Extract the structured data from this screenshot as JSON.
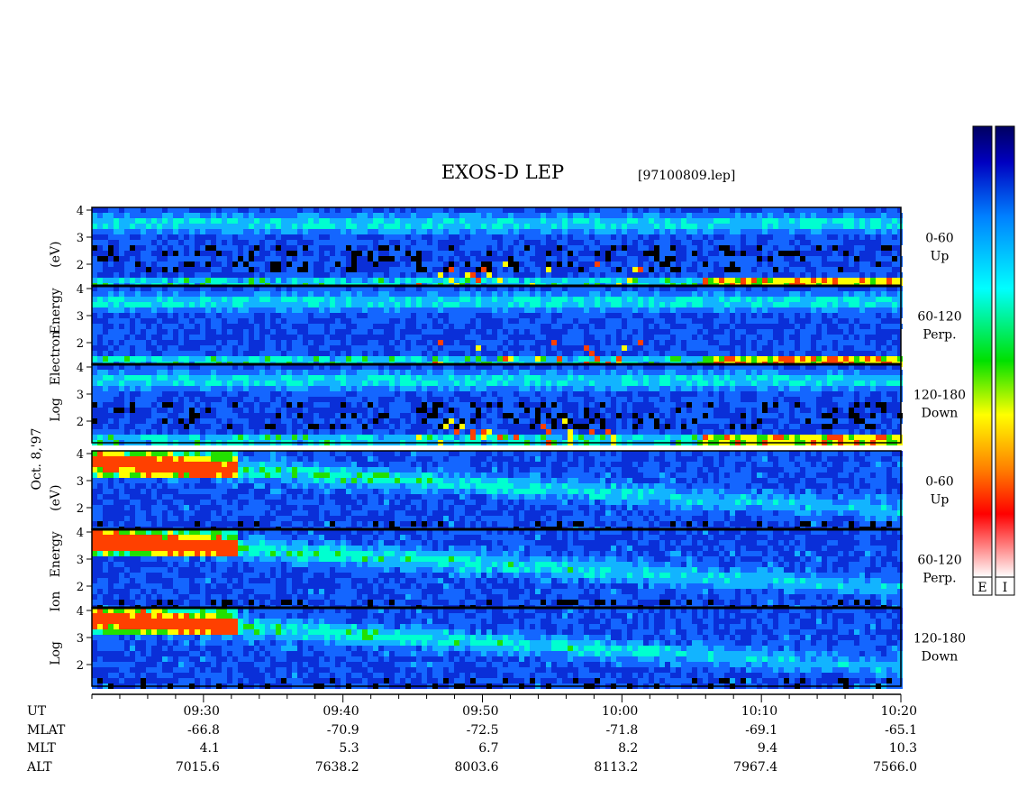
{
  "header": {
    "title": "EXOS-D LEP",
    "file": "[97100809.lep]"
  },
  "chart_data": {
    "type": "heatmap",
    "title": "EXOS-D LEP",
    "date_label": "Oct. 8,'97",
    "x_axis": {
      "quantity": "UT",
      "range": [
        "09:22",
        "10:20"
      ],
      "tick_labels": [
        "09:30",
        "09:40",
        "09:50",
        "10:00",
        "10:10",
        "10:20"
      ]
    },
    "groups": [
      {
        "id": "electron",
        "ylabel_lines": [
          "Log",
          "Electron",
          "Energy",
          "(eV)"
        ],
        "panels": [
          {
            "pitch": "0-60",
            "dir": "Up",
            "y_ticks": [
              "4",
              "3",
              "2"
            ]
          },
          {
            "pitch": "60-120",
            "dir": "Perp.",
            "y_ticks": [
              "4",
              "3",
              "2"
            ]
          },
          {
            "pitch": "120-180",
            "dir": "Down",
            "y_ticks": [
              "4",
              "3",
              "2"
            ]
          }
        ]
      },
      {
        "id": "ion",
        "ylabel_lines": [
          "Log",
          "Ion",
          "Energy",
          "(eV)"
        ],
        "panels": [
          {
            "pitch": "0-60",
            "dir": "Up",
            "y_ticks": [
              "4",
              "3",
              "2"
            ]
          },
          {
            "pitch": "60-120",
            "dir": "Perp.",
            "y_ticks": [
              "4",
              "3",
              "2"
            ]
          },
          {
            "pitch": "120-180",
            "dir": "Down",
            "y_ticks": [
              "4",
              "3",
              "2"
            ]
          }
        ]
      }
    ],
    "y_ticks": [
      "4",
      "3",
      "2"
    ],
    "y_range_log_eV": [
      1.2,
      4.1
    ],
    "ephemeris": {
      "rows": [
        {
          "label": "UT",
          "values": [
            "09:30",
            "09:40",
            "09:50",
            "10:00",
            "10:10",
            "10:20"
          ]
        },
        {
          "label": "MLAT",
          "values": [
            "-66.8",
            "-70.9",
            "-72.5",
            "-71.8",
            "-69.1",
            "-65.1"
          ]
        },
        {
          "label": "MLT",
          "values": [
            "4.1",
            "5.3",
            "6.7",
            "8.2",
            "9.4",
            "10.3"
          ]
        },
        {
          "label": "ALT",
          "values": [
            "7015.6",
            "7638.2",
            "8003.6",
            "8113.2",
            "7967.4",
            "7566.0"
          ]
        }
      ]
    },
    "colorbars": [
      {
        "label": "E"
      },
      {
        "label": "I"
      }
    ],
    "colormap": [
      "#ffffff",
      "#ff0000",
      "#ff8000",
      "#ffff00",
      "#00e000",
      "#00ffff",
      "#0080ff",
      "#0000c0",
      "#000060"
    ]
  }
}
